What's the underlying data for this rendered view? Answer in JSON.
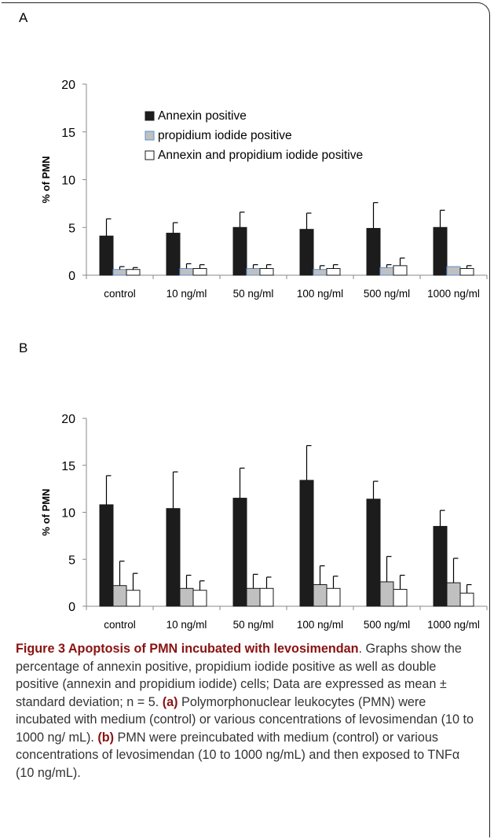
{
  "panels": [
    {
      "label": "A",
      "legend": [
        "Annexin positive",
        "propidium iodide positive",
        "Annexin and propidium iodide positive"
      ],
      "chart_data": {
        "type": "bar",
        "ylabel": "% of PMN",
        "ylim": [
          0,
          20
        ],
        "yticks": [
          0,
          5,
          10,
          15,
          20
        ],
        "categories": [
          "control",
          "10 ng/ml",
          "50 ng/ml",
          "100 ng/ml",
          "500 ng/ml",
          "1000 ng/ml"
        ],
        "series": [
          {
            "name": "Annexin positive",
            "color": "#1c1c1c",
            "values": [
              4.1,
              4.4,
              5.0,
              4.8,
              4.9,
              5.0
            ],
            "errors": [
              1.8,
              1.1,
              1.6,
              1.7,
              2.7,
              1.8
            ]
          },
          {
            "name": "propidium iodide positive",
            "color": "#c0c0c0",
            "stroke": "#5b8fd0",
            "values": [
              0.6,
              0.7,
              0.7,
              0.6,
              0.8,
              0.9
            ],
            "errors": [
              0.3,
              0.5,
              0.4,
              0.4,
              0.3,
              0.0
            ]
          },
          {
            "name": "Annexin and propidium iodide positive",
            "color": "#ffffff",
            "values": [
              0.6,
              0.7,
              0.7,
              0.7,
              1.0,
              0.7
            ],
            "errors": [
              0.2,
              0.4,
              0.4,
              0.4,
              0.8,
              0.3
            ]
          }
        ],
        "legend_position": "top"
      }
    },
    {
      "label": "B",
      "chart_data": {
        "type": "bar",
        "ylabel": "% of PMN",
        "ylim": [
          0,
          20
        ],
        "yticks": [
          0,
          5,
          10,
          15,
          20
        ],
        "categories": [
          "control",
          "10 ng/ml",
          "50 ng/ml",
          "100 ng/ml",
          "500 ng/ml",
          "1000 ng/ml"
        ],
        "series": [
          {
            "color": "#1c1c1c",
            "values": [
              10.8,
              10.4,
              11.5,
              13.4,
              11.4,
              8.5
            ],
            "errors": [
              3.1,
              3.9,
              3.2,
              3.7,
              1.9,
              1.7
            ]
          },
          {
            "color": "#c0c0c0",
            "values": [
              2.2,
              1.9,
              1.9,
              2.3,
              2.6,
              2.5
            ],
            "errors": [
              2.6,
              1.4,
              1.5,
              2.0,
              2.7,
              2.6
            ]
          },
          {
            "color": "#ffffff",
            "values": [
              1.7,
              1.7,
              1.9,
              1.9,
              1.8,
              1.4
            ],
            "errors": [
              1.8,
              1.0,
              1.2,
              1.3,
              1.5,
              0.9
            ]
          }
        ]
      }
    }
  ],
  "caption": {
    "title": "Figure 3 Apoptosis of PMN incubated with levosimendan",
    "title_end": ".",
    "text1": " Graphs show the percentage of annexin positive, propidium iodide positive as well as double positive (annexin and propidium iodide) cells; Data are expressed as mean ± standard deviation; n = 5. ",
    "tag_a": "(a)",
    "text2": " Polymorphonuclear leukocytes (PMN) were incubated with medium (control) or various concentrations of levosimendan (10 to 1000 ng/ mL). ",
    "tag_b": "(b)",
    "text3": " PMN were preincubated with medium (control) or various concentrations of levosimendan (10 to 1000 ng/mL) and then exposed to TNFα (10 ng/mL)."
  }
}
